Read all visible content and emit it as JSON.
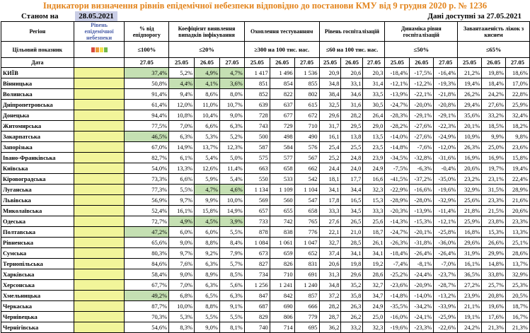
{
  "title": "Індикатори визначення рівнів епідемічної небезпеки відповідно до постанови КМУ від 9 грудня 2020 р. № 1236",
  "date_label": "Станом на",
  "date_value": "28.05.2021",
  "available_label": "Дані доступні за 27.05.2021",
  "header": {
    "region": "Регіон",
    "target": "Цільовий показник",
    "date": "Дата",
    "level": "Рівень епідемічної небезпеки",
    "pct_positive": "% від епідпорогу",
    "coef": "Коефіцієнт виявлення випадків інфікування",
    "testing": "Охоплення тестуванням",
    "hospital": "Рівень госпіталізацій",
    "dynamics": "Динаміка рівня госпіталізацій",
    "beds": "Завантаженість ліжок з киснем"
  },
  "thresholds": {
    "pct": "≤100%",
    "coef": "≤20%",
    "testing": "≥300 на 100 тис. нас.",
    "hospital": "≤60 на 100 тис. нас.",
    "dynamics": "≤50%",
    "beds": "≤65%"
  },
  "dates": {
    "pct": "27.05",
    "coef": [
      "25.05",
      "26.05",
      "27.05"
    ],
    "testing": [
      "25.05",
      "26.05",
      "27.05"
    ],
    "hospital": [
      "25.05",
      "26.05",
      "27.05"
    ],
    "dynamics": [
      "25.05",
      "26.05",
      "27.05"
    ],
    "beds": [
      "25.05",
      "26.05",
      "27.05"
    ]
  },
  "level_colors": [
    "#d94c3d",
    "#eb9a3a",
    "#f3e04a",
    "#72b94a"
  ],
  "rows": [
    {
      "region": "КИЇВ",
      "pct": "37,4%",
      "coef": [
        "5,2%",
        "4,9%",
        "4,7%"
      ],
      "testing": [
        "1 417",
        "1 496",
        "1 536"
      ],
      "hospital": [
        "20,9",
        "20,6",
        "20,3"
      ],
      "dynamics": [
        "-18,4%",
        "-17,5%",
        "-16,4%"
      ],
      "beds": [
        "21,2%",
        "19,8%",
        "18,6%"
      ]
    },
    {
      "region": "Вінницька",
      "pct": "50,8%",
      "coef": [
        "4,4%",
        "4,1%",
        "3,6%"
      ],
      "testing": [
        "851",
        "854",
        "855"
      ],
      "hospital": [
        "34,8",
        "33,1",
        "31,4"
      ],
      "dynamics": [
        "-12,1%",
        "-12,2%",
        "-19,3%"
      ],
      "beds": [
        "19,4%",
        "18,4%",
        "17,0%"
      ]
    },
    {
      "region": "Волинська",
      "pct": "91,4%",
      "coef": [
        "9,4%",
        "8,6%",
        "8,0%"
      ],
      "testing": [
        "852",
        "822",
        "802"
      ],
      "hospital": [
        "38,4",
        "34,6",
        "33,5"
      ],
      "dynamics": [
        "-13,9%",
        "-22,1%",
        "-21,8%"
      ],
      "beds": [
        "26,2%",
        "24,2%",
        "22,8%"
      ]
    },
    {
      "region": "Дніпропетровська",
      "pct": "61,4%",
      "coef": [
        "12,0%",
        "11,0%",
        "10,7%"
      ],
      "testing": [
        "639",
        "637",
        "615"
      ],
      "hospital": [
        "32,5",
        "31,6",
        "30,5"
      ],
      "dynamics": [
        "-24,7%",
        "-20,0%",
        "-20,8%"
      ],
      "beds": [
        "29,4%",
        "27,6%",
        "25,9%"
      ]
    },
    {
      "region": "Донецька",
      "pct": "94,4%",
      "coef": [
        "10,8%",
        "10,4%",
        "9,0%"
      ],
      "testing": [
        "728",
        "677",
        "672"
      ],
      "hospital": [
        "29,6",
        "28,2",
        "26,4"
      ],
      "dynamics": [
        "-28,3%",
        "-29,1%",
        "-29,1%"
      ],
      "beds": [
        "35,6%",
        "33,2%",
        "32,4%"
      ]
    },
    {
      "region": "Житомирська",
      "pct": "77,5%",
      "coef": [
        "7,0%",
        "6,6%",
        "6,3%"
      ],
      "testing": [
        "743",
        "729",
        "710"
      ],
      "hospital": [
        "31,7",
        "29,5",
        "29,0"
      ],
      "dynamics": [
        "-28,2%",
        "-27,6%",
        "-22,3%"
      ],
      "beds": [
        "20,1%",
        "18,5%",
        "18,2%"
      ]
    },
    {
      "region": "Закарпатська",
      "pct": "46,5%",
      "coef": [
        "6,3%",
        "5,3%",
        "5,2%"
      ],
      "testing": [
        "500",
        "498",
        "490"
      ],
      "hospital": [
        "16,1",
        "13,8",
        "13,5"
      ],
      "dynamics": [
        "-14,0%",
        "-27,6%",
        "-24,9%"
      ],
      "beds": [
        "10,9%",
        "9,9%",
        "9,8%"
      ]
    },
    {
      "region": "Запорізька",
      "pct": "67,0%",
      "coef": [
        "14,9%",
        "13,7%",
        "12,3%"
      ],
      "testing": [
        "587",
        "584",
        "576"
      ],
      "hospital": [
        "25,4",
        "25,5",
        "23,5"
      ],
      "dynamics": [
        "-14,8%",
        "-7,6%",
        "-12,0%"
      ],
      "beds": [
        "26,3%",
        "25,0%",
        "23,6%"
      ]
    },
    {
      "region": "Івано-Франківська",
      "pct": "82,7%",
      "coef": [
        "6,1%",
        "5,4%",
        "5,0%"
      ],
      "testing": [
        "575",
        "577",
        "567"
      ],
      "hospital": [
        "25,2",
        "24,8",
        "23,9"
      ],
      "dynamics": [
        "-34,5%",
        "-32,8%",
        "-31,6%"
      ],
      "beds": [
        "16,9%",
        "16,9%",
        "15,8%"
      ]
    },
    {
      "region": "Київська",
      "pct": "54,0%",
      "coef": [
        "13,3%",
        "12,6%",
        "11,4%"
      ],
      "testing": [
        "663",
        "658",
        "662"
      ],
      "hospital": [
        "24,4",
        "24,0",
        "24,9"
      ],
      "dynamics": [
        "-7,5%",
        "-6,3%",
        "-0,4%"
      ],
      "beds": [
        "20,6%",
        "19,7%",
        "19,4%"
      ]
    },
    {
      "region": "Кіровоградська",
      "pct": "73,3%",
      "coef": [
        "6,6%",
        "5,9%",
        "5,4%"
      ],
      "testing": [
        "550",
        "533",
        "542"
      ],
      "hospital": [
        "18,1",
        "17,7",
        "16,6"
      ],
      "dynamics": [
        "-41,5%",
        "-37,2%",
        "-35,0%"
      ],
      "beds": [
        "23,2%",
        "23,1%",
        "22,4%"
      ]
    },
    {
      "region": "Луганська",
      "pct": "77,3%",
      "coef": [
        "5,5%",
        "4,7%",
        "4,6%"
      ],
      "testing": [
        "1 134",
        "1 109",
        "1 104"
      ],
      "hospital": [
        "34,1",
        "34,4",
        "32,3"
      ],
      "dynamics": [
        "-22,9%",
        "-16,6%",
        "-19,6%"
      ],
      "beds": [
        "32,9%",
        "31,5%",
        "28,9%"
      ]
    },
    {
      "region": "Львівська",
      "pct": "56,9%",
      "coef": [
        "9,7%",
        "9,9%",
        "10,0%"
      ],
      "testing": [
        "569",
        "560",
        "547"
      ],
      "hospital": [
        "17,8",
        "16,5",
        "15,3"
      ],
      "dynamics": [
        "-28,9%",
        "-28,0%",
        "-32,9%"
      ],
      "beds": [
        "25,6%",
        "23,3%",
        "21,6%"
      ]
    },
    {
      "region": "Миколаївська",
      "pct": "52,4%",
      "coef": [
        "16,1%",
        "15,8%",
        "14,9%"
      ],
      "testing": [
        "657",
        "655",
        "658"
      ],
      "hospital": [
        "33,3",
        "34,5",
        "33,3"
      ],
      "dynamics": [
        "-20,3%",
        "-13,9%",
        "-11,4%"
      ],
      "beds": [
        "21,8%",
        "21,5%",
        "20,6%"
      ]
    },
    {
      "region": "Одеська",
      "pct": "72,7%",
      "coef": [
        "4,9%",
        "4,5%",
        "3,9%"
      ],
      "testing": [
        "733",
        "742",
        "765"
      ],
      "hospital": [
        "27,6",
        "26,5",
        "25,6"
      ],
      "dynamics": [
        "-14,3%",
        "-15,3%",
        "-12,1%"
      ],
      "beds": [
        "25,9%",
        "23,8%",
        "23,3%"
      ]
    },
    {
      "region": "Полтавська",
      "pct": "47,2%",
      "coef": [
        "6,0%",
        "6,0%",
        "5,5%"
      ],
      "testing": [
        "878",
        "838",
        "776"
      ],
      "hospital": [
        "22,1",
        "21,0",
        "18,7"
      ],
      "dynamics": [
        "-24,7%",
        "-20,1%",
        "-25,8%"
      ],
      "beds": [
        "16,8%",
        "15,3%",
        "13,3%"
      ]
    },
    {
      "region": "Рівненська",
      "pct": "65,6%",
      "coef": [
        "9,0%",
        "8,8%",
        "8,4%"
      ],
      "testing": [
        "1 084",
        "1 061",
        "1 047"
      ],
      "hospital": [
        "32,7",
        "28,5",
        "26,1"
      ],
      "dynamics": [
        "-26,3%",
        "-31,8%",
        "-36,0%"
      ],
      "beds": [
        "29,6%",
        "26,6%",
        "25,1%"
      ]
    },
    {
      "region": "Сумська",
      "pct": "80,3%",
      "coef": [
        "9,7%",
        "9,2%",
        "7,9%"
      ],
      "testing": [
        "673",
        "659",
        "652"
      ],
      "hospital": [
        "37,4",
        "34,1",
        "34,1"
      ],
      "dynamics": [
        "-18,4%",
        "-26,4%",
        "-26,4%"
      ],
      "beds": [
        "31,9%",
        "29,9%",
        "28,6%"
      ]
    },
    {
      "region": "Тернопільська",
      "pct": "84,6%",
      "coef": [
        "7,6%",
        "6,3%",
        "5,7%"
      ],
      "testing": [
        "827",
        "826",
        "831"
      ],
      "hospital": [
        "20,6",
        "19,8",
        "19,2"
      ],
      "dynamics": [
        "-7,4%",
        "-8,1%",
        "-7,0%"
      ],
      "beds": [
        "16,1%",
        "14,8%",
        "13,7%"
      ]
    },
    {
      "region": "Харківська",
      "pct": "58,4%",
      "coef": [
        "9,0%",
        "8,9%",
        "8,5%"
      ],
      "testing": [
        "734",
        "710",
        "691"
      ],
      "hospital": [
        "31,3",
        "29,6",
        "28,6"
      ],
      "dynamics": [
        "-25,2%",
        "-24,4%",
        "-23,7%"
      ],
      "beds": [
        "36,5%",
        "33,8%",
        "32,9%"
      ]
    },
    {
      "region": "Херсонська",
      "pct": "67,7%",
      "coef": [
        "7,0%",
        "6,3%",
        "5,6%"
      ],
      "testing": [
        "1 256",
        "1 241",
        "1 240"
      ],
      "hospital": [
        "34,8",
        "35,2",
        "32,7"
      ],
      "dynamics": [
        "-23,6%",
        "-20,9%",
        "-28,7%"
      ],
      "beds": [
        "27,2%",
        "25,7%",
        "25,3%"
      ]
    },
    {
      "region": "Хмельницька",
      "pct": "49,2%",
      "coef": [
        "6,8%",
        "6,5%",
        "6,3%"
      ],
      "testing": [
        "847",
        "842",
        "857"
      ],
      "hospital": [
        "37,2",
        "35,8",
        "34,7"
      ],
      "dynamics": [
        "-14,8%",
        "-14,0%",
        "-13,2%"
      ],
      "beds": [
        "23,9%",
        "20,8%",
        "20,5%"
      ]
    },
    {
      "region": "Черкаська",
      "pct": "87,7%",
      "coef": [
        "10,0%",
        "8,8%",
        "9,1%"
      ],
      "testing": [
        "687",
        "690",
        "666"
      ],
      "hospital": [
        "28,2",
        "26,3",
        "24,9"
      ],
      "dynamics": [
        "-35,5%",
        "-34,2%",
        "-33,9%"
      ],
      "beds": [
        "21,1%",
        "19,6%",
        "18,7%"
      ]
    },
    {
      "region": "Чернівецька",
      "pct": "70,3%",
      "coef": [
        "5,3%",
        "5,5%",
        "5,5%"
      ],
      "testing": [
        "829",
        "806",
        "779"
      ],
      "hospital": [
        "28,7",
        "26,2",
        "25,0"
      ],
      "dynamics": [
        "-16,0%",
        "-24,1%",
        "-25,9%"
      ],
      "beds": [
        "19,1%",
        "17,6%",
        "16,7%"
      ]
    },
    {
      "region": "Чернігівська",
      "pct": "54,6%",
      "coef": [
        "8,3%",
        "9,0%",
        "8,1%"
      ],
      "testing": [
        "740",
        "714",
        "695"
      ],
      "hospital": [
        "36,2",
        "33,2",
        "32,3"
      ],
      "dynamics": [
        "-19,6%",
        "-23,3%",
        "-22,6%"
      ],
      "beds": [
        "24,2%",
        "21,3%",
        "21,3%"
      ]
    }
  ],
  "green_cells": {
    "pct_rows": [
      0,
      6,
      15,
      21
    ],
    "coef": [
      [
        0,
        1
      ],
      [
        0,
        2
      ],
      [
        1,
        0
      ],
      [
        1,
        1
      ],
      [
        1,
        2
      ],
      [
        11,
        1
      ],
      [
        11,
        2
      ],
      [
        14,
        0
      ],
      [
        14,
        1
      ],
      [
        14,
        2
      ]
    ]
  }
}
